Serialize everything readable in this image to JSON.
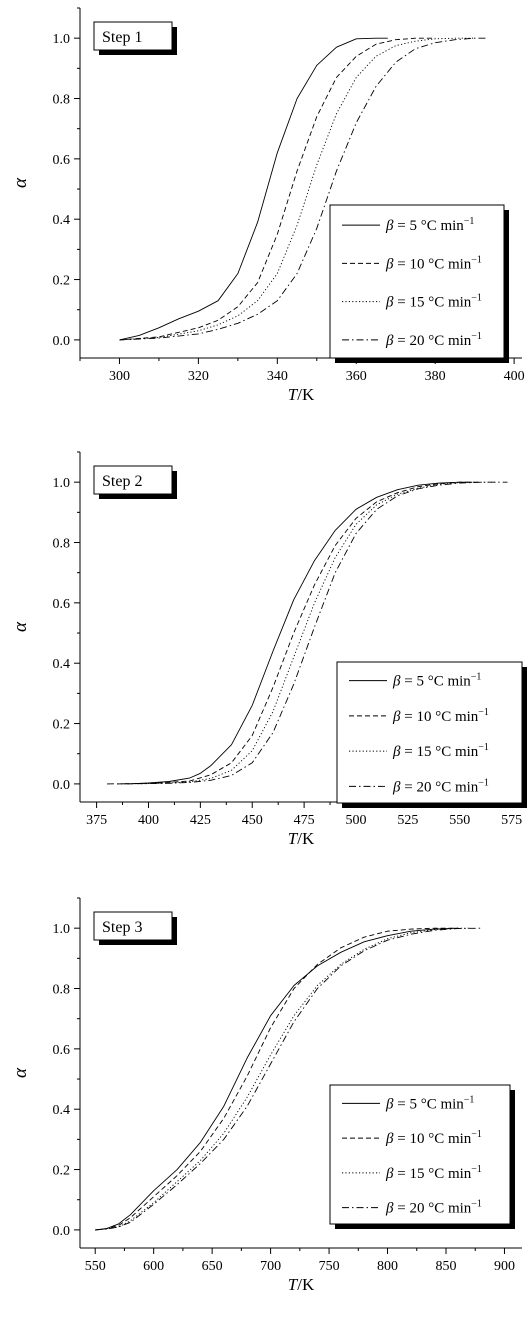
{
  "chart_data": [
    {
      "type": "line",
      "panel_label": "Step 1",
      "xlabel": {
        "italic": "T",
        "plain": "/K"
      },
      "ylabel": "α",
      "xlim": [
        290,
        402
      ],
      "ylim": [
        -0.06,
        1.1
      ],
      "xticks": [
        300,
        320,
        340,
        360,
        380,
        400
      ],
      "yticks": [
        0.0,
        0.2,
        0.4,
        0.6,
        0.8,
        1.0
      ],
      "legend_position": "center-right",
      "series": [
        {
          "name": "β = 5 °C min⁻¹",
          "beta": "5",
          "style": "solid",
          "x": [
            300,
            305,
            310,
            315,
            320,
            325,
            330,
            335,
            340,
            345,
            350,
            355,
            360,
            365,
            368
          ],
          "y": [
            0.0,
            0.015,
            0.04,
            0.07,
            0.095,
            0.13,
            0.22,
            0.39,
            0.62,
            0.8,
            0.91,
            0.97,
            0.998,
            1.0,
            1.0
          ]
        },
        {
          "name": "β = 10 °C min⁻¹",
          "beta": "10",
          "style": "dashed",
          "x": [
            300,
            310,
            320,
            325,
            330,
            335,
            340,
            345,
            350,
            355,
            360,
            365,
            370,
            375,
            380
          ],
          "y": [
            0.0,
            0.01,
            0.04,
            0.065,
            0.11,
            0.19,
            0.35,
            0.56,
            0.74,
            0.87,
            0.94,
            0.98,
            0.995,
            1.0,
            1.0
          ]
        },
        {
          "name": "β = 15 °C min⁻¹",
          "beta": "15",
          "style": "dotted",
          "x": [
            300,
            310,
            320,
            325,
            330,
            335,
            340,
            345,
            350,
            355,
            360,
            365,
            370,
            375,
            380,
            385,
            390
          ],
          "y": [
            0.0,
            0.008,
            0.03,
            0.05,
            0.08,
            0.13,
            0.22,
            0.38,
            0.58,
            0.75,
            0.87,
            0.94,
            0.975,
            0.99,
            0.998,
            1.0,
            1.0
          ]
        },
        {
          "name": "β = 20 °C min⁻¹",
          "beta": "20",
          "style": "dashdot",
          "x": [
            300,
            310,
            320,
            325,
            330,
            335,
            340,
            345,
            350,
            355,
            360,
            365,
            370,
            375,
            380,
            385,
            390,
            393
          ],
          "y": [
            0.0,
            0.006,
            0.02,
            0.035,
            0.055,
            0.085,
            0.13,
            0.22,
            0.37,
            0.56,
            0.72,
            0.84,
            0.92,
            0.965,
            0.985,
            0.995,
            1.0,
            1.0
          ]
        }
      ]
    },
    {
      "type": "line",
      "panel_label": "Step 2",
      "xlabel": {
        "italic": "T",
        "plain": "/K"
      },
      "ylabel": "α",
      "xlim": [
        367,
        580
      ],
      "ylim": [
        -0.06,
        1.1
      ],
      "xticks": [
        375,
        400,
        425,
        450,
        475,
        500,
        525,
        550,
        575
      ],
      "yticks": [
        0.0,
        0.2,
        0.4,
        0.6,
        0.8,
        1.0
      ],
      "legend_position": "bottom-right",
      "series": [
        {
          "name": "β = 5 °C min⁻¹",
          "beta": "5",
          "style": "solid",
          "x": [
            390,
            400,
            410,
            420,
            425,
            430,
            440,
            450,
            460,
            470,
            480,
            490,
            500,
            510,
            520,
            530,
            540,
            550,
            556
          ],
          "y": [
            0.0,
            0.003,
            0.008,
            0.02,
            0.035,
            0.06,
            0.13,
            0.26,
            0.44,
            0.61,
            0.74,
            0.84,
            0.91,
            0.95,
            0.975,
            0.99,
            0.997,
            1.0,
            1.0
          ]
        },
        {
          "name": "β = 10 °C min⁻¹",
          "beta": "10",
          "style": "dashed",
          "x": [
            385,
            400,
            410,
            420,
            430,
            440,
            450,
            460,
            470,
            480,
            490,
            500,
            510,
            520,
            530,
            540,
            550,
            560
          ],
          "y": [
            0.0,
            0.002,
            0.005,
            0.01,
            0.03,
            0.07,
            0.16,
            0.32,
            0.5,
            0.66,
            0.79,
            0.88,
            0.935,
            0.965,
            0.985,
            0.995,
            1.0,
            1.0
          ]
        },
        {
          "name": "β = 15 °C min⁻¹",
          "beta": "15",
          "style": "dotted",
          "x": [
            385,
            400,
            410,
            420,
            430,
            440,
            450,
            460,
            470,
            480,
            490,
            500,
            510,
            520,
            530,
            540,
            550,
            560,
            568
          ],
          "y": [
            0.0,
            0.001,
            0.003,
            0.007,
            0.018,
            0.045,
            0.11,
            0.24,
            0.42,
            0.6,
            0.75,
            0.86,
            0.925,
            0.96,
            0.98,
            0.993,
            0.999,
            1.0,
            1.0
          ]
        },
        {
          "name": "β = 20 °C min⁻¹",
          "beta": "20",
          "style": "dashdot",
          "x": [
            380,
            400,
            410,
            420,
            430,
            440,
            450,
            460,
            470,
            480,
            490,
            500,
            510,
            520,
            530,
            540,
            550,
            560,
            573
          ],
          "y": [
            0.0,
            0.001,
            0.002,
            0.005,
            0.012,
            0.028,
            0.07,
            0.17,
            0.33,
            0.52,
            0.7,
            0.83,
            0.91,
            0.955,
            0.978,
            0.99,
            0.997,
            1.0,
            1.0
          ]
        }
      ]
    },
    {
      "type": "line",
      "panel_label": "Step 3",
      "xlabel": {
        "italic": "T",
        "plain": "/K"
      },
      "ylabel": "α",
      "xlim": [
        537,
        915
      ],
      "ylim": [
        -0.06,
        1.1
      ],
      "xticks": [
        550,
        600,
        650,
        700,
        750,
        800,
        850,
        900
      ],
      "yticks": [
        0.0,
        0.2,
        0.4,
        0.6,
        0.8,
        1.0
      ],
      "legend_position": "bottom-right",
      "series": [
        {
          "name": "β = 5 °C min⁻¹",
          "beta": "5",
          "style": "solid",
          "x": [
            550,
            560,
            570,
            580,
            600,
            620,
            640,
            660,
            680,
            700,
            720,
            740,
            760,
            780,
            800,
            820,
            840,
            860
          ],
          "y": [
            0.0,
            0.005,
            0.02,
            0.05,
            0.13,
            0.2,
            0.29,
            0.41,
            0.57,
            0.71,
            0.81,
            0.875,
            0.92,
            0.955,
            0.975,
            0.99,
            0.997,
            1.0
          ]
        },
        {
          "name": "β = 10 °C min⁻¹",
          "beta": "10",
          "style": "dashed",
          "x": [
            550,
            560,
            570,
            580,
            600,
            620,
            640,
            660,
            680,
            700,
            720,
            740,
            760,
            780,
            800,
            820,
            840,
            860
          ],
          "y": [
            0.0,
            0.004,
            0.015,
            0.04,
            0.11,
            0.18,
            0.26,
            0.37,
            0.51,
            0.67,
            0.8,
            0.88,
            0.935,
            0.97,
            0.99,
            0.997,
            1.0,
            1.0
          ]
        },
        {
          "name": "β = 15 °C min⁻¹",
          "beta": "15",
          "style": "dotted",
          "x": [
            550,
            560,
            570,
            580,
            600,
            620,
            640,
            660,
            680,
            700,
            720,
            740,
            760,
            780,
            800,
            820,
            840,
            860,
            870
          ],
          "y": [
            0.0,
            0.003,
            0.01,
            0.03,
            0.09,
            0.16,
            0.23,
            0.32,
            0.44,
            0.58,
            0.71,
            0.81,
            0.88,
            0.93,
            0.965,
            0.985,
            0.995,
            1.0,
            1.0
          ]
        },
        {
          "name": "β = 20 °C min⁻¹",
          "beta": "20",
          "style": "dashdot",
          "x": [
            550,
            560,
            570,
            580,
            600,
            620,
            640,
            660,
            680,
            700,
            720,
            740,
            760,
            780,
            800,
            820,
            840,
            860,
            880
          ],
          "y": [
            0.0,
            0.003,
            0.01,
            0.025,
            0.085,
            0.15,
            0.22,
            0.3,
            0.41,
            0.55,
            0.69,
            0.8,
            0.875,
            0.925,
            0.96,
            0.98,
            0.993,
            0.999,
            1.0
          ]
        }
      ]
    }
  ]
}
